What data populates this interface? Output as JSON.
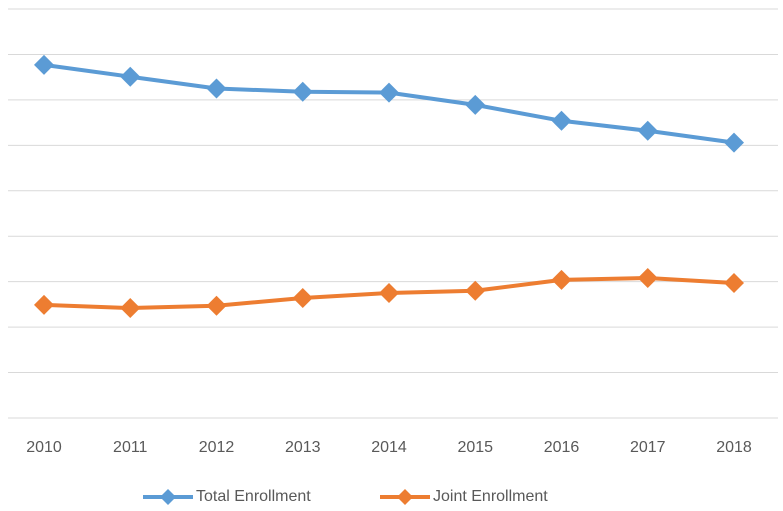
{
  "chart_data": {
    "type": "line",
    "categories": [
      "2010",
      "2011",
      "2012",
      "2013",
      "2014",
      "2015",
      "2016",
      "2017",
      "2018"
    ],
    "series": [
      {
        "name": "Total Enrollment",
        "color": "#5b9bd5",
        "values": [
          7.77,
          7.51,
          7.25,
          7.18,
          7.16,
          6.89,
          6.54,
          6.32,
          6.06
        ]
      },
      {
        "name": "Joint Enrollment",
        "color": "#ed7d31",
        "values": [
          2.49,
          2.42,
          2.47,
          2.64,
          2.75,
          2.8,
          3.04,
          3.08,
          2.97
        ]
      }
    ],
    "ylim": [
      0,
      9
    ],
    "yticks": [
      0,
      1,
      2,
      3,
      4,
      5,
      6,
      7,
      8,
      9
    ],
    "show_ytick_labels": false,
    "grid": true,
    "legend": "bottom"
  }
}
